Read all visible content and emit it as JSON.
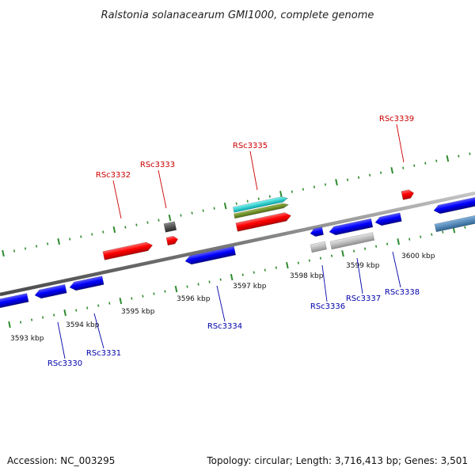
{
  "title": "Ralstonia solanacearum GMI1000, complete genome",
  "footer": {
    "accession": "Accession: NC_003295",
    "summary": "Topology: circular; Length: 3,716,413 bp; Genes: 3,501"
  },
  "colors": {
    "forward_gene": "#ff0000",
    "reverse_gene": "#0000ff",
    "label_forward": "#cc0000",
    "label_reverse": "#0000aa",
    "backbone": "#8a8a8a",
    "tick": "#2e8b2e",
    "rna_cyan": "#00cccc",
    "rna_olive": "#6b8e23",
    "pseudo_grey": "#bbbbbb",
    "dark_grey": "#555555",
    "steel_blue": "#4682b4"
  },
  "scale_labels": [
    "3593 kbp",
    "3594 kbp",
    "3595 kbp",
    "3596 kbp",
    "3597 kbp",
    "3598 kbp",
    "3599 kbp",
    "3600 kbp"
  ],
  "forward_labels": [
    "RSc3332",
    "RSc3333",
    "RSc3335",
    "RSc3339"
  ],
  "reverse_labels": [
    "RSc3330",
    "RSc3331",
    "RSc3334",
    "RSc3336",
    "RSc3337",
    "RSc3338"
  ]
}
